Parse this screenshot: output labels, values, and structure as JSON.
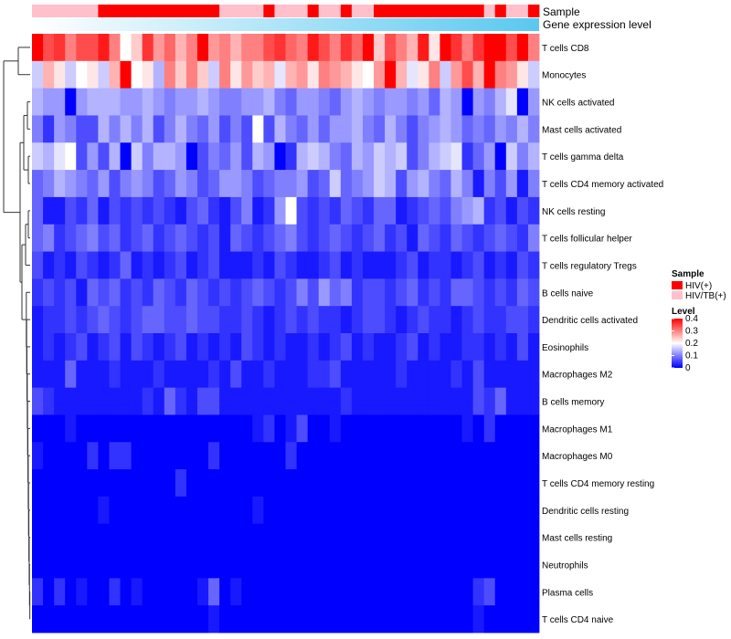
{
  "chart_data": {
    "type": "heatmap",
    "annotation_titles": {
      "sample": "Sample",
      "expression": "Gene expression level"
    },
    "legend": {
      "sample_title": "Sample",
      "sample_entries": [
        {
          "label": "HIV(+)",
          "color": "#ff0000"
        },
        {
          "label": "HIV/TB(+)",
          "color": "#ffc0cb"
        }
      ],
      "level_title": "Level",
      "level_ticks": [
        "0.4",
        "0.3",
        "0.2",
        "0.1",
        "0"
      ],
      "level_range": [
        0,
        0.4
      ],
      "color_stops": [
        "#0000ff",
        "#ffffff",
        "#ff0000"
      ]
    },
    "rows": [
      "T cells CD8",
      "Monocytes",
      "NK cells activated",
      "Mast cells activated",
      "T cells gamma delta",
      "T cells CD4 memory activated",
      "NK cells resting",
      "T cells follicular helper",
      "T cells regulatory  Tregs",
      "B cells naive",
      "Dendritic cells activated",
      "Eosinophils",
      "Macrophages M2",
      "B cells memory",
      "Macrophages M1",
      "Macrophages M0",
      "T cells CD4 memory resting",
      "Dendritic cells resting",
      "Mast cells resting",
      "Neutrophils",
      "Plasma cells",
      "T cells CD4 naive"
    ],
    "column_count": 46,
    "sample_groups": [
      "HIV/TB(+)",
      "HIV/TB(+)",
      "HIV/TB(+)",
      "HIV/TB(+)",
      "HIV/TB(+)",
      "HIV/TB(+)",
      "HIV(+)",
      "HIV(+)",
      "HIV(+)",
      "HIV(+)",
      "HIV(+)",
      "HIV(+)",
      "HIV(+)",
      "HIV(+)",
      "HIV(+)",
      "HIV(+)",
      "HIV(+)",
      "HIV/TB(+)",
      "HIV/TB(+)",
      "HIV/TB(+)",
      "HIV/TB(+)",
      "HIV(+)",
      "HIV/TB(+)",
      "HIV/TB(+)",
      "HIV/TB(+)",
      "HIV(+)",
      "HIV/TB(+)",
      "HIV/TB(+)",
      "HIV(+)",
      "HIV/TB(+)",
      "HIV/TB(+)",
      "HIV(+)",
      "HIV(+)",
      "HIV(+)",
      "HIV(+)",
      "HIV(+)",
      "HIV(+)",
      "HIV(+)",
      "HIV(+)",
      "HIV(+)",
      "HIV(+)",
      "HIV/TB(+)",
      "HIV(+)",
      "HIV/TB(+)",
      "HIV/TB(+)",
      "HIV(+)"
    ],
    "expression_gradient": {
      "from": "#ffffff",
      "to": "#5ac8f0"
    },
    "values": [
      [
        0.4,
        0.34,
        0.36,
        0.3,
        0.34,
        0.34,
        0.38,
        0.3,
        0.2,
        0.24,
        0.36,
        0.28,
        0.32,
        0.26,
        0.3,
        0.4,
        0.28,
        0.3,
        0.26,
        0.3,
        0.3,
        0.34,
        0.36,
        0.32,
        0.3,
        0.38,
        0.34,
        0.3,
        0.36,
        0.32,
        0.4,
        0.24,
        0.34,
        0.3,
        0.26,
        0.38,
        0.22,
        0.4,
        0.36,
        0.3,
        0.36,
        0.4,
        0.4,
        0.34,
        0.4,
        0.3
      ],
      [
        0.16,
        0.26,
        0.22,
        0.16,
        0.2,
        0.22,
        0.16,
        0.26,
        0.4,
        0.2,
        0.22,
        0.14,
        0.3,
        0.24,
        0.3,
        0.24,
        0.16,
        0.3,
        0.22,
        0.28,
        0.24,
        0.26,
        0.18,
        0.26,
        0.28,
        0.22,
        0.3,
        0.28,
        0.26,
        0.22,
        0.2,
        0.28,
        0.4,
        0.26,
        0.18,
        0.22,
        0.3,
        0.16,
        0.28,
        0.34,
        0.26,
        0.4,
        0.3,
        0.28,
        0.22,
        0.16
      ],
      [
        0.14,
        0.12,
        0.12,
        0.0,
        0.12,
        0.14,
        0.14,
        0.14,
        0.12,
        0.12,
        0.14,
        0.12,
        0.1,
        0.12,
        0.12,
        0.14,
        0.12,
        0.1,
        0.1,
        0.12,
        0.12,
        0.14,
        0.1,
        0.08,
        0.12,
        0.12,
        0.1,
        0.08,
        0.12,
        0.14,
        0.12,
        0.1,
        0.12,
        0.12,
        0.1,
        0.12,
        0.08,
        0.14,
        0.12,
        0.0,
        0.12,
        0.1,
        0.14,
        0.18,
        0.0,
        0.12
      ],
      [
        0.1,
        0.04,
        0.12,
        0.1,
        0.06,
        0.06,
        0.14,
        0.1,
        0.14,
        0.1,
        0.14,
        0.06,
        0.1,
        0.14,
        0.1,
        0.08,
        0.12,
        0.06,
        0.1,
        0.06,
        0.2,
        0.06,
        0.14,
        0.1,
        0.08,
        0.12,
        0.08,
        0.12,
        0.12,
        0.14,
        0.1,
        0.08,
        0.14,
        0.1,
        0.06,
        0.1,
        0.12,
        0.14,
        0.12,
        0.08,
        0.1,
        0.08,
        0.12,
        0.1,
        0.14,
        0.1
      ],
      [
        0.16,
        0.14,
        0.18,
        0.2,
        0.06,
        0.12,
        0.06,
        0.14,
        0.0,
        0.16,
        0.1,
        0.14,
        0.14,
        0.12,
        0.0,
        0.06,
        0.1,
        0.08,
        0.12,
        0.06,
        0.14,
        0.12,
        0.0,
        0.04,
        0.14,
        0.16,
        0.14,
        0.1,
        0.08,
        0.14,
        0.12,
        0.16,
        0.14,
        0.16,
        0.06,
        0.1,
        0.14,
        0.16,
        0.18,
        0.04,
        0.08,
        0.12,
        0.0,
        0.16,
        0.1,
        0.14
      ],
      [
        0.08,
        0.1,
        0.14,
        0.12,
        0.1,
        0.08,
        0.12,
        0.06,
        0.1,
        0.12,
        0.1,
        0.06,
        0.08,
        0.12,
        0.1,
        0.06,
        0.08,
        0.12,
        0.12,
        0.1,
        0.06,
        0.08,
        0.1,
        0.1,
        0.12,
        0.06,
        0.08,
        0.16,
        0.08,
        0.1,
        0.12,
        0.16,
        0.14,
        0.06,
        0.12,
        0.14,
        0.1,
        0.08,
        0.14,
        0.1,
        0.02,
        0.1,
        0.06,
        0.12,
        0.02,
        0.1
      ],
      [
        0.08,
        0.02,
        0.02,
        0.06,
        0.04,
        0.08,
        0.02,
        0.06,
        0.04,
        0.06,
        0.04,
        0.06,
        0.04,
        0.02,
        0.06,
        0.08,
        0.04,
        0.02,
        0.06,
        0.1,
        0.02,
        0.04,
        0.12,
        0.2,
        0.06,
        0.04,
        0.06,
        0.04,
        0.08,
        0.06,
        0.04,
        0.08,
        0.08,
        0.02,
        0.04,
        0.06,
        0.08,
        0.06,
        0.1,
        0.12,
        0.14,
        0.04,
        0.06,
        0.02,
        0.06,
        0.04
      ],
      [
        0.08,
        0.1,
        0.04,
        0.06,
        0.08,
        0.1,
        0.06,
        0.08,
        0.04,
        0.06,
        0.08,
        0.04,
        0.06,
        0.08,
        0.06,
        0.04,
        0.06,
        0.02,
        0.08,
        0.06,
        0.04,
        0.06,
        0.08,
        0.1,
        0.06,
        0.04,
        0.06,
        0.08,
        0.06,
        0.04,
        0.06,
        0.08,
        0.04,
        0.06,
        0.02,
        0.08,
        0.06,
        0.04,
        0.08,
        0.06,
        0.04,
        0.06,
        0.08,
        0.06,
        0.04,
        0.1
      ],
      [
        0.06,
        0.02,
        0.04,
        0.02,
        0.06,
        0.04,
        0.02,
        0.04,
        0.08,
        0.02,
        0.04,
        0.02,
        0.04,
        0.06,
        0.02,
        0.04,
        0.06,
        0.02,
        0.02,
        0.02,
        0.04,
        0.02,
        0.06,
        0.04,
        0.02,
        0.02,
        0.04,
        0.06,
        0.02,
        0.04,
        0.02,
        0.02,
        0.02,
        0.04,
        0.06,
        0.02,
        0.04,
        0.04,
        0.02,
        0.04,
        0.06,
        0.02,
        0.04,
        0.02,
        0.06,
        0.04
      ],
      [
        0.04,
        0.06,
        0.04,
        0.06,
        0.02,
        0.08,
        0.06,
        0.08,
        0.04,
        0.06,
        0.04,
        0.08,
        0.06,
        0.04,
        0.08,
        0.06,
        0.04,
        0.06,
        0.04,
        0.06,
        0.08,
        0.06,
        0.04,
        0.06,
        0.1,
        0.06,
        0.12,
        0.08,
        0.1,
        0.04,
        0.06,
        0.06,
        0.04,
        0.06,
        0.08,
        0.04,
        0.06,
        0.04,
        0.08,
        0.08,
        0.06,
        0.04,
        0.06,
        0.04,
        0.08,
        0.06
      ],
      [
        0.02,
        0.04,
        0.04,
        0.06,
        0.04,
        0.06,
        0.08,
        0.06,
        0.04,
        0.06,
        0.08,
        0.08,
        0.06,
        0.06,
        0.08,
        0.06,
        0.06,
        0.04,
        0.04,
        0.06,
        0.04,
        0.02,
        0.04,
        0.06,
        0.04,
        0.06,
        0.04,
        0.04,
        0.02,
        0.04,
        0.06,
        0.06,
        0.04,
        0.02,
        0.04,
        0.06,
        0.04,
        0.04,
        0.02,
        0.04,
        0.06,
        0.04,
        0.04,
        0.06,
        0.06,
        0.04
      ],
      [
        0.02,
        0.04,
        0.02,
        0.04,
        0.06,
        0.02,
        0.04,
        0.06,
        0.02,
        0.06,
        0.04,
        0.02,
        0.04,
        0.06,
        0.02,
        0.04,
        0.02,
        0.04,
        0.02,
        0.06,
        0.04,
        0.02,
        0.04,
        0.02,
        0.02,
        0.04,
        0.02,
        0.04,
        0.06,
        0.02,
        0.04,
        0.02,
        0.02,
        0.04,
        0.06,
        0.02,
        0.04,
        0.02,
        0.02,
        0.04,
        0.04,
        0.02,
        0.04,
        0.02,
        0.06,
        0.02
      ],
      [
        0.02,
        0.02,
        0.02,
        0.08,
        0.02,
        0.02,
        0.02,
        0.04,
        0.02,
        0.02,
        0.02,
        0.04,
        0.02,
        0.02,
        0.02,
        0.02,
        0.04,
        0.02,
        0.06,
        0.02,
        0.02,
        0.04,
        0.02,
        0.02,
        0.02,
        0.04,
        0.04,
        0.06,
        0.02,
        0.02,
        0.02,
        0.02,
        0.02,
        0.04,
        0.02,
        0.02,
        0.02,
        0.02,
        0.04,
        0.02,
        0.06,
        0.02,
        0.02,
        0.02,
        0.02,
        0.02
      ],
      [
        0.06,
        0.04,
        0.02,
        0.02,
        0.02,
        0.02,
        0.02,
        0.02,
        0.02,
        0.02,
        0.04,
        0.02,
        0.08,
        0.04,
        0.02,
        0.06,
        0.06,
        0.02,
        0.02,
        0.02,
        0.02,
        0.02,
        0.02,
        0.02,
        0.02,
        0.02,
        0.02,
        0.02,
        0.04,
        0.02,
        0.02,
        0.02,
        0.02,
        0.02,
        0.02,
        0.02,
        0.02,
        0.02,
        0.02,
        0.02,
        0.06,
        0.04,
        0.08,
        0.02,
        0.02,
        0.02
      ],
      [
        0.0,
        0.0,
        0.0,
        0.02,
        0.0,
        0.0,
        0.0,
        0.0,
        0.0,
        0.0,
        0.0,
        0.0,
        0.0,
        0.0,
        0.0,
        0.0,
        0.0,
        0.0,
        0.0,
        0.0,
        0.02,
        0.04,
        0.0,
        0.02,
        0.06,
        0.0,
        0.0,
        0.02,
        0.0,
        0.0,
        0.0,
        0.0,
        0.0,
        0.0,
        0.0,
        0.0,
        0.0,
        0.0,
        0.0,
        0.02,
        0.0,
        0.04,
        0.0,
        0.0,
        0.0,
        0.0
      ],
      [
        0.02,
        0.0,
        0.0,
        0.0,
        0.0,
        0.04,
        0.0,
        0.04,
        0.04,
        0.0,
        0.0,
        0.0,
        0.0,
        0.0,
        0.0,
        0.0,
        0.04,
        0.0,
        0.0,
        0.0,
        0.0,
        0.0,
        0.0,
        0.04,
        0.0,
        0.0,
        0.0,
        0.0,
        0.0,
        0.0,
        0.0,
        0.0,
        0.0,
        0.0,
        0.0,
        0.0,
        0.0,
        0.0,
        0.0,
        0.0,
        0.0,
        0.0,
        0.0,
        0.0,
        0.0,
        0.0
      ],
      [
        0.0,
        0.0,
        0.0,
        0.0,
        0.0,
        0.0,
        0.0,
        0.0,
        0.0,
        0.0,
        0.0,
        0.0,
        0.0,
        0.04,
        0.0,
        0.0,
        0.0,
        0.0,
        0.0,
        0.0,
        0.0,
        0.0,
        0.0,
        0.0,
        0.0,
        0.0,
        0.0,
        0.0,
        0.0,
        0.0,
        0.0,
        0.0,
        0.0,
        0.0,
        0.0,
        0.0,
        0.0,
        0.0,
        0.0,
        0.0,
        0.0,
        0.0,
        0.0,
        0.0,
        0.0,
        0.0
      ],
      [
        0.0,
        0.0,
        0.0,
        0.0,
        0.0,
        0.0,
        0.02,
        0.0,
        0.0,
        0.0,
        0.0,
        0.0,
        0.0,
        0.0,
        0.0,
        0.0,
        0.0,
        0.0,
        0.0,
        0.0,
        0.02,
        0.0,
        0.0,
        0.0,
        0.0,
        0.0,
        0.0,
        0.0,
        0.0,
        0.0,
        0.0,
        0.0,
        0.0,
        0.0,
        0.0,
        0.0,
        0.0,
        0.0,
        0.0,
        0.0,
        0.0,
        0.0,
        0.0,
        0.0,
        0.0,
        0.0
      ],
      [
        0.0,
        0.0,
        0.0,
        0.0,
        0.0,
        0.0,
        0.0,
        0.0,
        0.0,
        0.0,
        0.0,
        0.0,
        0.0,
        0.0,
        0.0,
        0.0,
        0.0,
        0.0,
        0.0,
        0.0,
        0.0,
        0.0,
        0.0,
        0.0,
        0.0,
        0.0,
        0.0,
        0.0,
        0.0,
        0.0,
        0.0,
        0.0,
        0.0,
        0.0,
        0.0,
        0.0,
        0.0,
        0.0,
        0.0,
        0.0,
        0.0,
        0.0,
        0.0,
        0.0,
        0.0,
        0.0
      ],
      [
        0.0,
        0.0,
        0.0,
        0.0,
        0.0,
        0.0,
        0.0,
        0.0,
        0.0,
        0.0,
        0.0,
        0.0,
        0.0,
        0.0,
        0.0,
        0.0,
        0.0,
        0.0,
        0.0,
        0.0,
        0.0,
        0.0,
        0.0,
        0.0,
        0.0,
        0.0,
        0.0,
        0.0,
        0.0,
        0.0,
        0.0,
        0.0,
        0.0,
        0.0,
        0.0,
        0.0,
        0.0,
        0.0,
        0.0,
        0.0,
        0.0,
        0.0,
        0.0,
        0.0,
        0.0,
        0.0
      ],
      [
        0.04,
        0.0,
        0.04,
        0.0,
        0.02,
        0.0,
        0.0,
        0.04,
        0.0,
        0.02,
        0.0,
        0.0,
        0.0,
        0.0,
        0.0,
        0.02,
        0.08,
        0.0,
        0.02,
        0.0,
        0.0,
        0.0,
        0.0,
        0.0,
        0.0,
        0.0,
        0.0,
        0.0,
        0.0,
        0.0,
        0.0,
        0.0,
        0.0,
        0.0,
        0.0,
        0.0,
        0.0,
        0.0,
        0.0,
        0.0,
        0.04,
        0.06,
        0.0,
        0.0,
        0.0,
        0.0
      ],
      [
        0.0,
        0.0,
        0.0,
        0.0,
        0.0,
        0.0,
        0.0,
        0.0,
        0.0,
        0.0,
        0.0,
        0.0,
        0.0,
        0.0,
        0.0,
        0.0,
        0.02,
        0.0,
        0.0,
        0.0,
        0.0,
        0.0,
        0.0,
        0.0,
        0.0,
        0.0,
        0.0,
        0.0,
        0.0,
        0.0,
        0.0,
        0.0,
        0.0,
        0.0,
        0.0,
        0.0,
        0.0,
        0.0,
        0.0,
        0.0,
        0.02,
        0.0,
        0.0,
        0.0,
        0.0,
        0.0
      ]
    ]
  }
}
